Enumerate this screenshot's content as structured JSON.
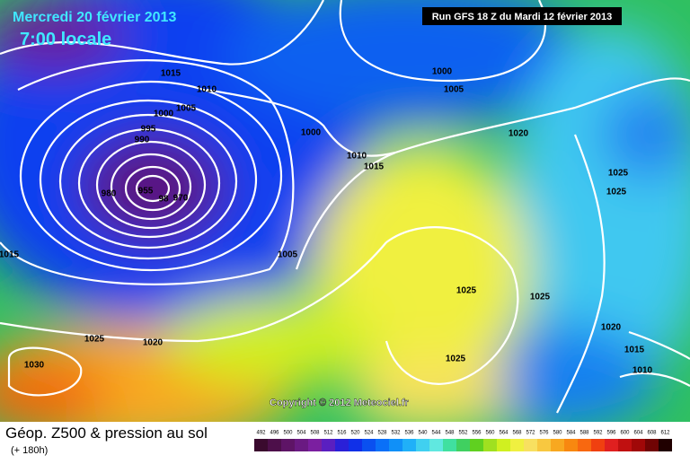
{
  "header": {
    "date": "Mercredi 20 février 2013",
    "time": "7:00 locale",
    "run": "Run GFS 18 Z du Mardi 12 février 2013"
  },
  "copyright": "Copyright © 2012 Meteociel.fr",
  "footer": {
    "title": "Géop. Z500 & pression au sol",
    "subtitle": "(+ 180h)"
  },
  "isobar_labels": [
    "1015",
    "1010",
    "1005",
    "1000",
    "995",
    "990",
    "980",
    "955",
    "98",
    "970",
    "1000",
    "1010",
    "1015",
    "1005",
    "1000",
    "1005",
    "1020",
    "1025",
    "1025",
    "1025",
    "1025",
    "1020",
    "1015",
    "1010",
    "1025",
    "1025",
    "1020",
    "1030",
    "1015"
  ],
  "legend": {
    "values": [
      "492",
      "496",
      "500",
      "504",
      "508",
      "512",
      "516",
      "520",
      "524",
      "528",
      "532",
      "536",
      "540",
      "544",
      "548",
      "552",
      "556",
      "560",
      "564",
      "568",
      "572",
      "576",
      "580",
      "584",
      "588",
      "592",
      "596",
      "600",
      "604",
      "608",
      "612"
    ],
    "colors": [
      "#3a0a2e",
      "#4d0f4a",
      "#5e1466",
      "#6a1a82",
      "#7b1fa0",
      "#5a1fc0",
      "#2a20d8",
      "#1030e8",
      "#0a50f0",
      "#0a70f8",
      "#1090f8",
      "#20b0f8",
      "#40d0f0",
      "#60e8e0",
      "#40e0a0",
      "#40d060",
      "#60d020",
      "#a0e020",
      "#d0f020",
      "#f0f040",
      "#f8e060",
      "#f8c840",
      "#f8a820",
      "#f88810",
      "#f86810",
      "#f04010",
      "#e02020",
      "#c01010",
      "#a00808",
      "#700404",
      "#200000"
    ]
  }
}
